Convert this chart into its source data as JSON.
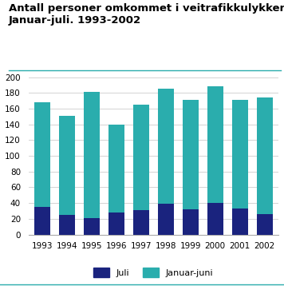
{
  "years": [
    "1993",
    "1994",
    "1995",
    "1996",
    "1997",
    "1998",
    "1999",
    "2000",
    "2001",
    "2002"
  ],
  "juli": [
    35,
    25,
    21,
    28,
    31,
    39,
    32,
    40,
    33,
    26
  ],
  "januar_juni": [
    133,
    126,
    160,
    112,
    134,
    146,
    139,
    148,
    138,
    148
  ],
  "color_juli": "#1a237e",
  "color_januar_juni": "#2aadad",
  "title_line1": "Antall personer omkommet i veitrafikkulykker.",
  "title_line2": "Januar-juli. 1993-2002",
  "ylim": [
    0,
    200
  ],
  "yticks": [
    0,
    20,
    40,
    60,
    80,
    100,
    120,
    140,
    160,
    180,
    200
  ],
  "legend_juli": "Juli",
  "legend_januar_juni": "Januar-juni",
  "background_color": "#ffffff",
  "title_fontsize": 9.5,
  "bar_width": 0.65,
  "teal_line_color": "#2aadad"
}
